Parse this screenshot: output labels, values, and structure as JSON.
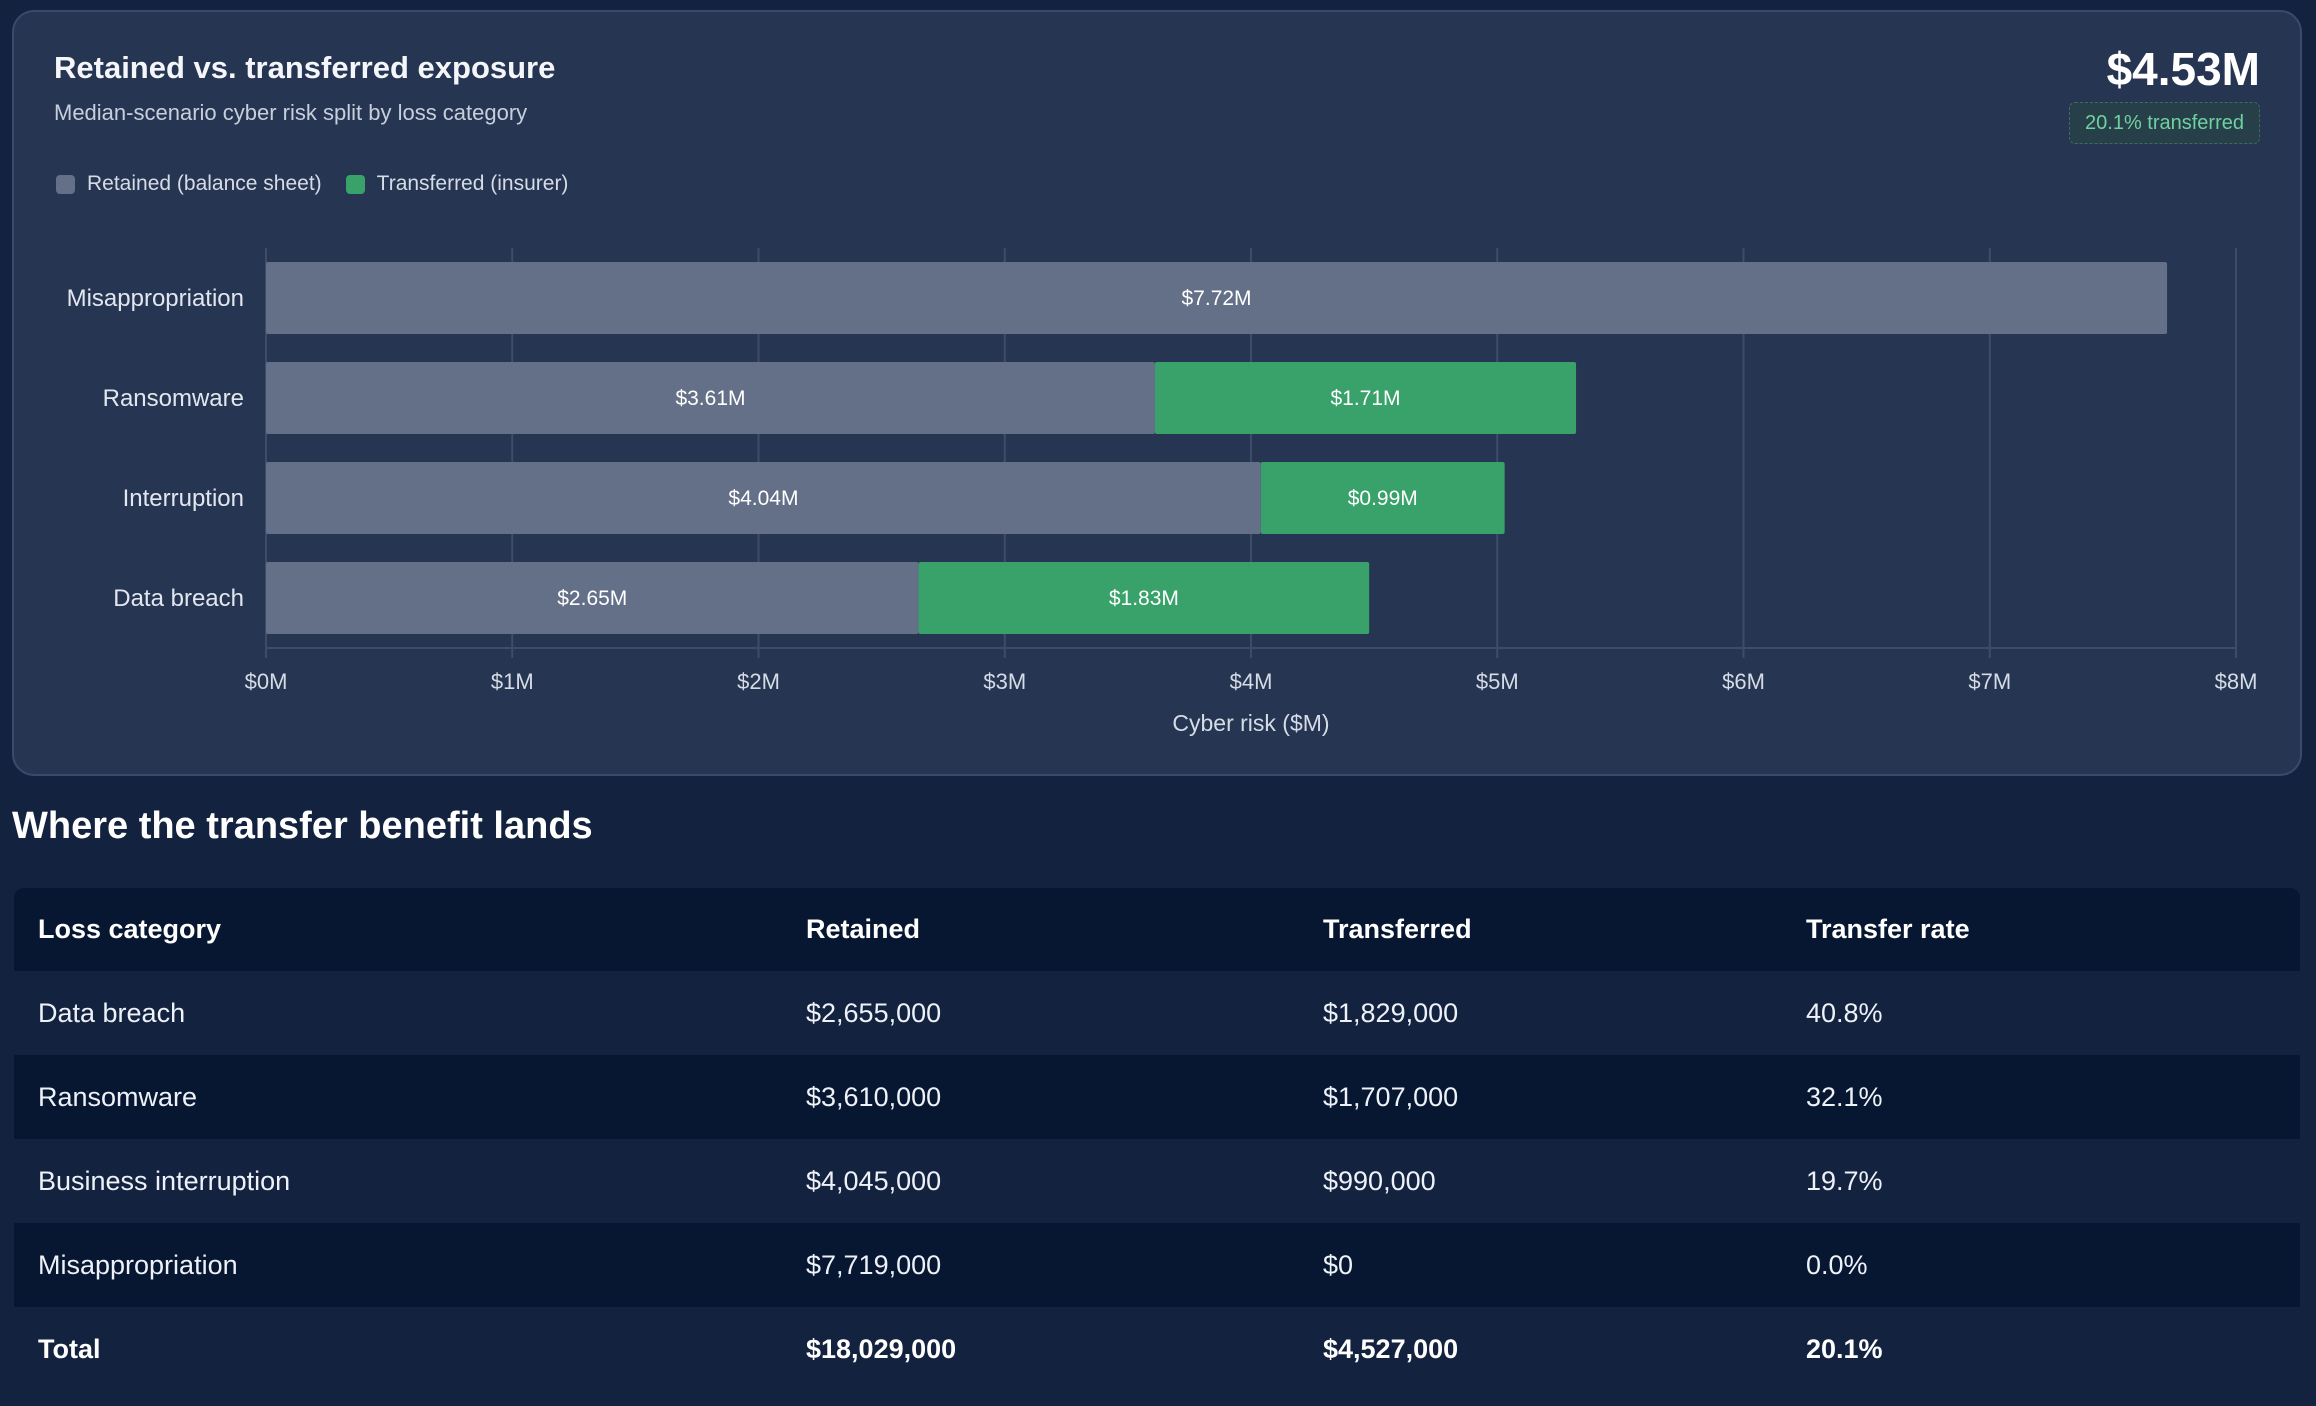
{
  "card": {
    "title": "Retained vs. transferred exposure",
    "subtitle": "Median-scenario cyber risk split by loss category",
    "headline_value": "$4.53M",
    "headline_badge": "20.1% transferred"
  },
  "colors": {
    "retained": "#647088",
    "transferred": "#38a26a",
    "grid": "#3d4c68"
  },
  "chart_data": {
    "type": "bar",
    "orientation": "horizontal",
    "stacked": true,
    "categories": [
      "Misappropriation",
      "Ransomware",
      "Interruption",
      "Data breach"
    ],
    "series": [
      {
        "name": "Retained (balance sheet)",
        "values": [
          7.72,
          3.61,
          4.04,
          2.65
        ],
        "labels": [
          "$7.72M",
          "$3.61M",
          "$4.04M",
          "$2.65M"
        ]
      },
      {
        "name": "Transferred (insurer)",
        "values": [
          0,
          1.71,
          0.99,
          1.83
        ],
        "labels": [
          "",
          "$1.71M",
          "$0.99M",
          "$1.83M"
        ]
      }
    ],
    "xlim": [
      0,
      8
    ],
    "xticks": [
      "$0M",
      "$1M",
      "$2M",
      "$3M",
      "$4M",
      "$5M",
      "$6M",
      "$7M",
      "$8M"
    ],
    "xlabel": "Cyber risk ($M)",
    "ylabel": "",
    "grid": true,
    "legend": "top-left"
  },
  "section": {
    "title": "Where the transfer benefit lands"
  },
  "table": {
    "headers": [
      "Loss category",
      "Retained",
      "Transferred",
      "Transfer rate"
    ],
    "rows": [
      [
        "Data breach",
        "$2,655,000",
        "$1,829,000",
        "40.8%"
      ],
      [
        "Ransomware",
        "$3,610,000",
        "$1,707,000",
        "32.1%"
      ],
      [
        "Business interruption",
        "$4,045,000",
        "$990,000",
        "19.7%"
      ],
      [
        "Misappropriation",
        "$7,719,000",
        "$0",
        "0.0%"
      ]
    ],
    "total": [
      "Total",
      "$18,029,000",
      "$4,527,000",
      "20.1%"
    ]
  }
}
